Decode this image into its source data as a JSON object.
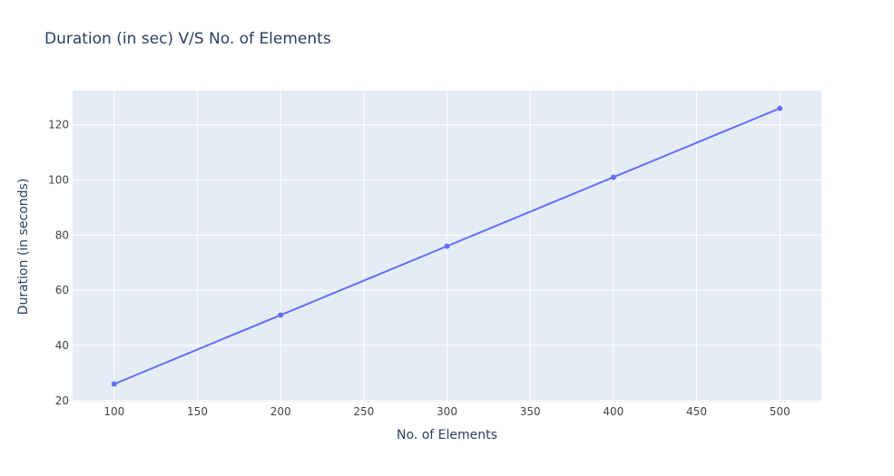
{
  "chart_data": {
    "type": "line",
    "title": "Duration (in sec) V/S No. of Elements",
    "xlabel": "No. of Elements",
    "ylabel": "Duration (in seconds)",
    "x": [
      100,
      200,
      300,
      400,
      500
    ],
    "series": [
      {
        "values": [
          26,
          51,
          76,
          101,
          126
        ]
      }
    ],
    "xlim": [
      75,
      525
    ],
    "ylim": [
      19.6,
      132.4
    ],
    "x_ticks": [
      100,
      150,
      200,
      250,
      300,
      350,
      400,
      450,
      500
    ],
    "y_ticks": [
      20,
      40,
      60,
      80,
      100,
      120
    ],
    "grid": true,
    "legend": "none",
    "colors": {
      "line": "#636efa",
      "plot_background": "#e5ecf6",
      "grid": "#ffffff",
      "text": "#2a3f5f",
      "tick_text": "#444444"
    }
  }
}
